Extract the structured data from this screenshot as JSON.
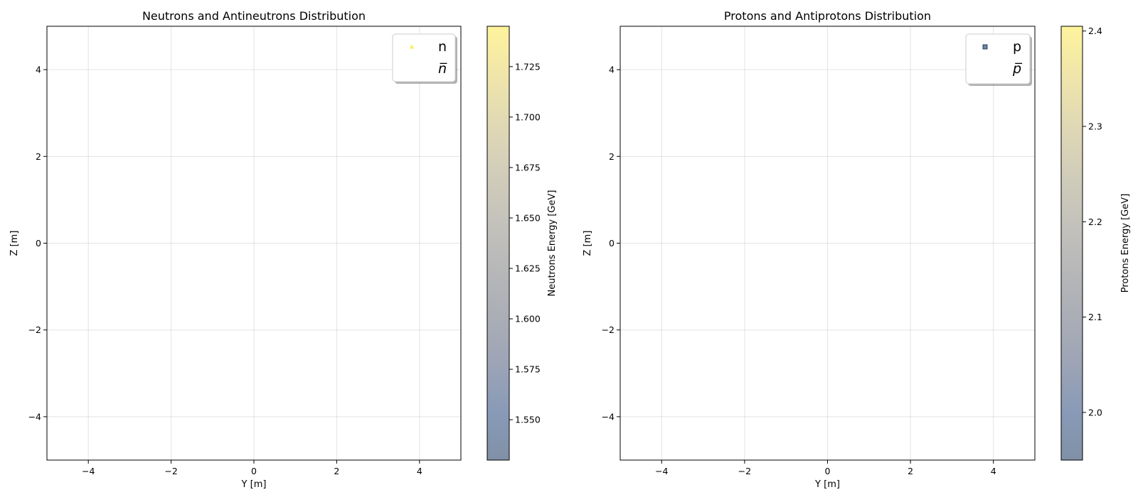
{
  "colors": {
    "colormap": [
      "#00224e",
      "#123570",
      "#3b496c",
      "#575d6d",
      "#707173",
      "#8a8678",
      "#a59c74",
      "#c3b369",
      "#e1cc55",
      "#fee838"
    ],
    "colormap_alpha": 0.5,
    "grid": "#b0b0b0"
  },
  "chart_data": [
    {
      "type": "scatter",
      "title": "Neutrons and Antineutrons Distribution",
      "xlabel": "Y [m]",
      "ylabel": "Z [m]",
      "xlim": [
        -5,
        5
      ],
      "ylim": [
        -5,
        5
      ],
      "xticks": [
        -4,
        -2,
        0,
        2,
        4
      ],
      "yticks": [
        -4,
        -2,
        0,
        2,
        4
      ],
      "xtick_labels": [
        "−4",
        "−2",
        "0",
        "2",
        "4"
      ],
      "ytick_labels": [
        "−4",
        "−2",
        "0",
        "2",
        "4"
      ],
      "grid": true,
      "legend_position": "upper right",
      "series": [
        {
          "name": "n",
          "marker": "triangle",
          "color": "#fee838",
          "points": []
        },
        {
          "name": "n̅",
          "marker": "none",
          "color": "#ffffff",
          "points": []
        }
      ],
      "colorbar": {
        "label": "Neutrons Energy [GeV]",
        "range": [
          1.53,
          1.745
        ],
        "ticks": [
          1.55,
          1.575,
          1.6,
          1.625,
          1.65,
          1.675,
          1.7,
          1.725
        ],
        "tick_labels": [
          "1.550",
          "1.575",
          "1.600",
          "1.625",
          "1.650",
          "1.675",
          "1.700",
          "1.725"
        ]
      }
    },
    {
      "type": "scatter",
      "title": "Protons and Antiprotons Distribution",
      "xlabel": "Y [m]",
      "ylabel": "Z [m]",
      "xlim": [
        -5,
        5
      ],
      "ylim": [
        -5,
        5
      ],
      "xticks": [
        -4,
        -2,
        0,
        2,
        4
      ],
      "yticks": [
        -4,
        -2,
        0,
        2,
        4
      ],
      "xtick_labels": [
        "−4",
        "−2",
        "0",
        "2",
        "4"
      ],
      "ytick_labels": [
        "−4",
        "−2",
        "0",
        "2",
        "4"
      ],
      "grid": true,
      "legend_position": "upper right",
      "series": [
        {
          "name": "p",
          "marker": "square",
          "color": "#00224e",
          "points": []
        },
        {
          "name": "p̅",
          "marker": "none",
          "color": "#ffffff",
          "points": []
        }
      ],
      "colorbar": {
        "label": "Protons Energy [GeV]",
        "range": [
          1.95,
          2.405
        ],
        "ticks": [
          2.0,
          2.1,
          2.2,
          2.3,
          2.4
        ],
        "tick_labels": [
          "2.0",
          "2.1",
          "2.2",
          "2.3",
          "2.4"
        ]
      }
    }
  ]
}
